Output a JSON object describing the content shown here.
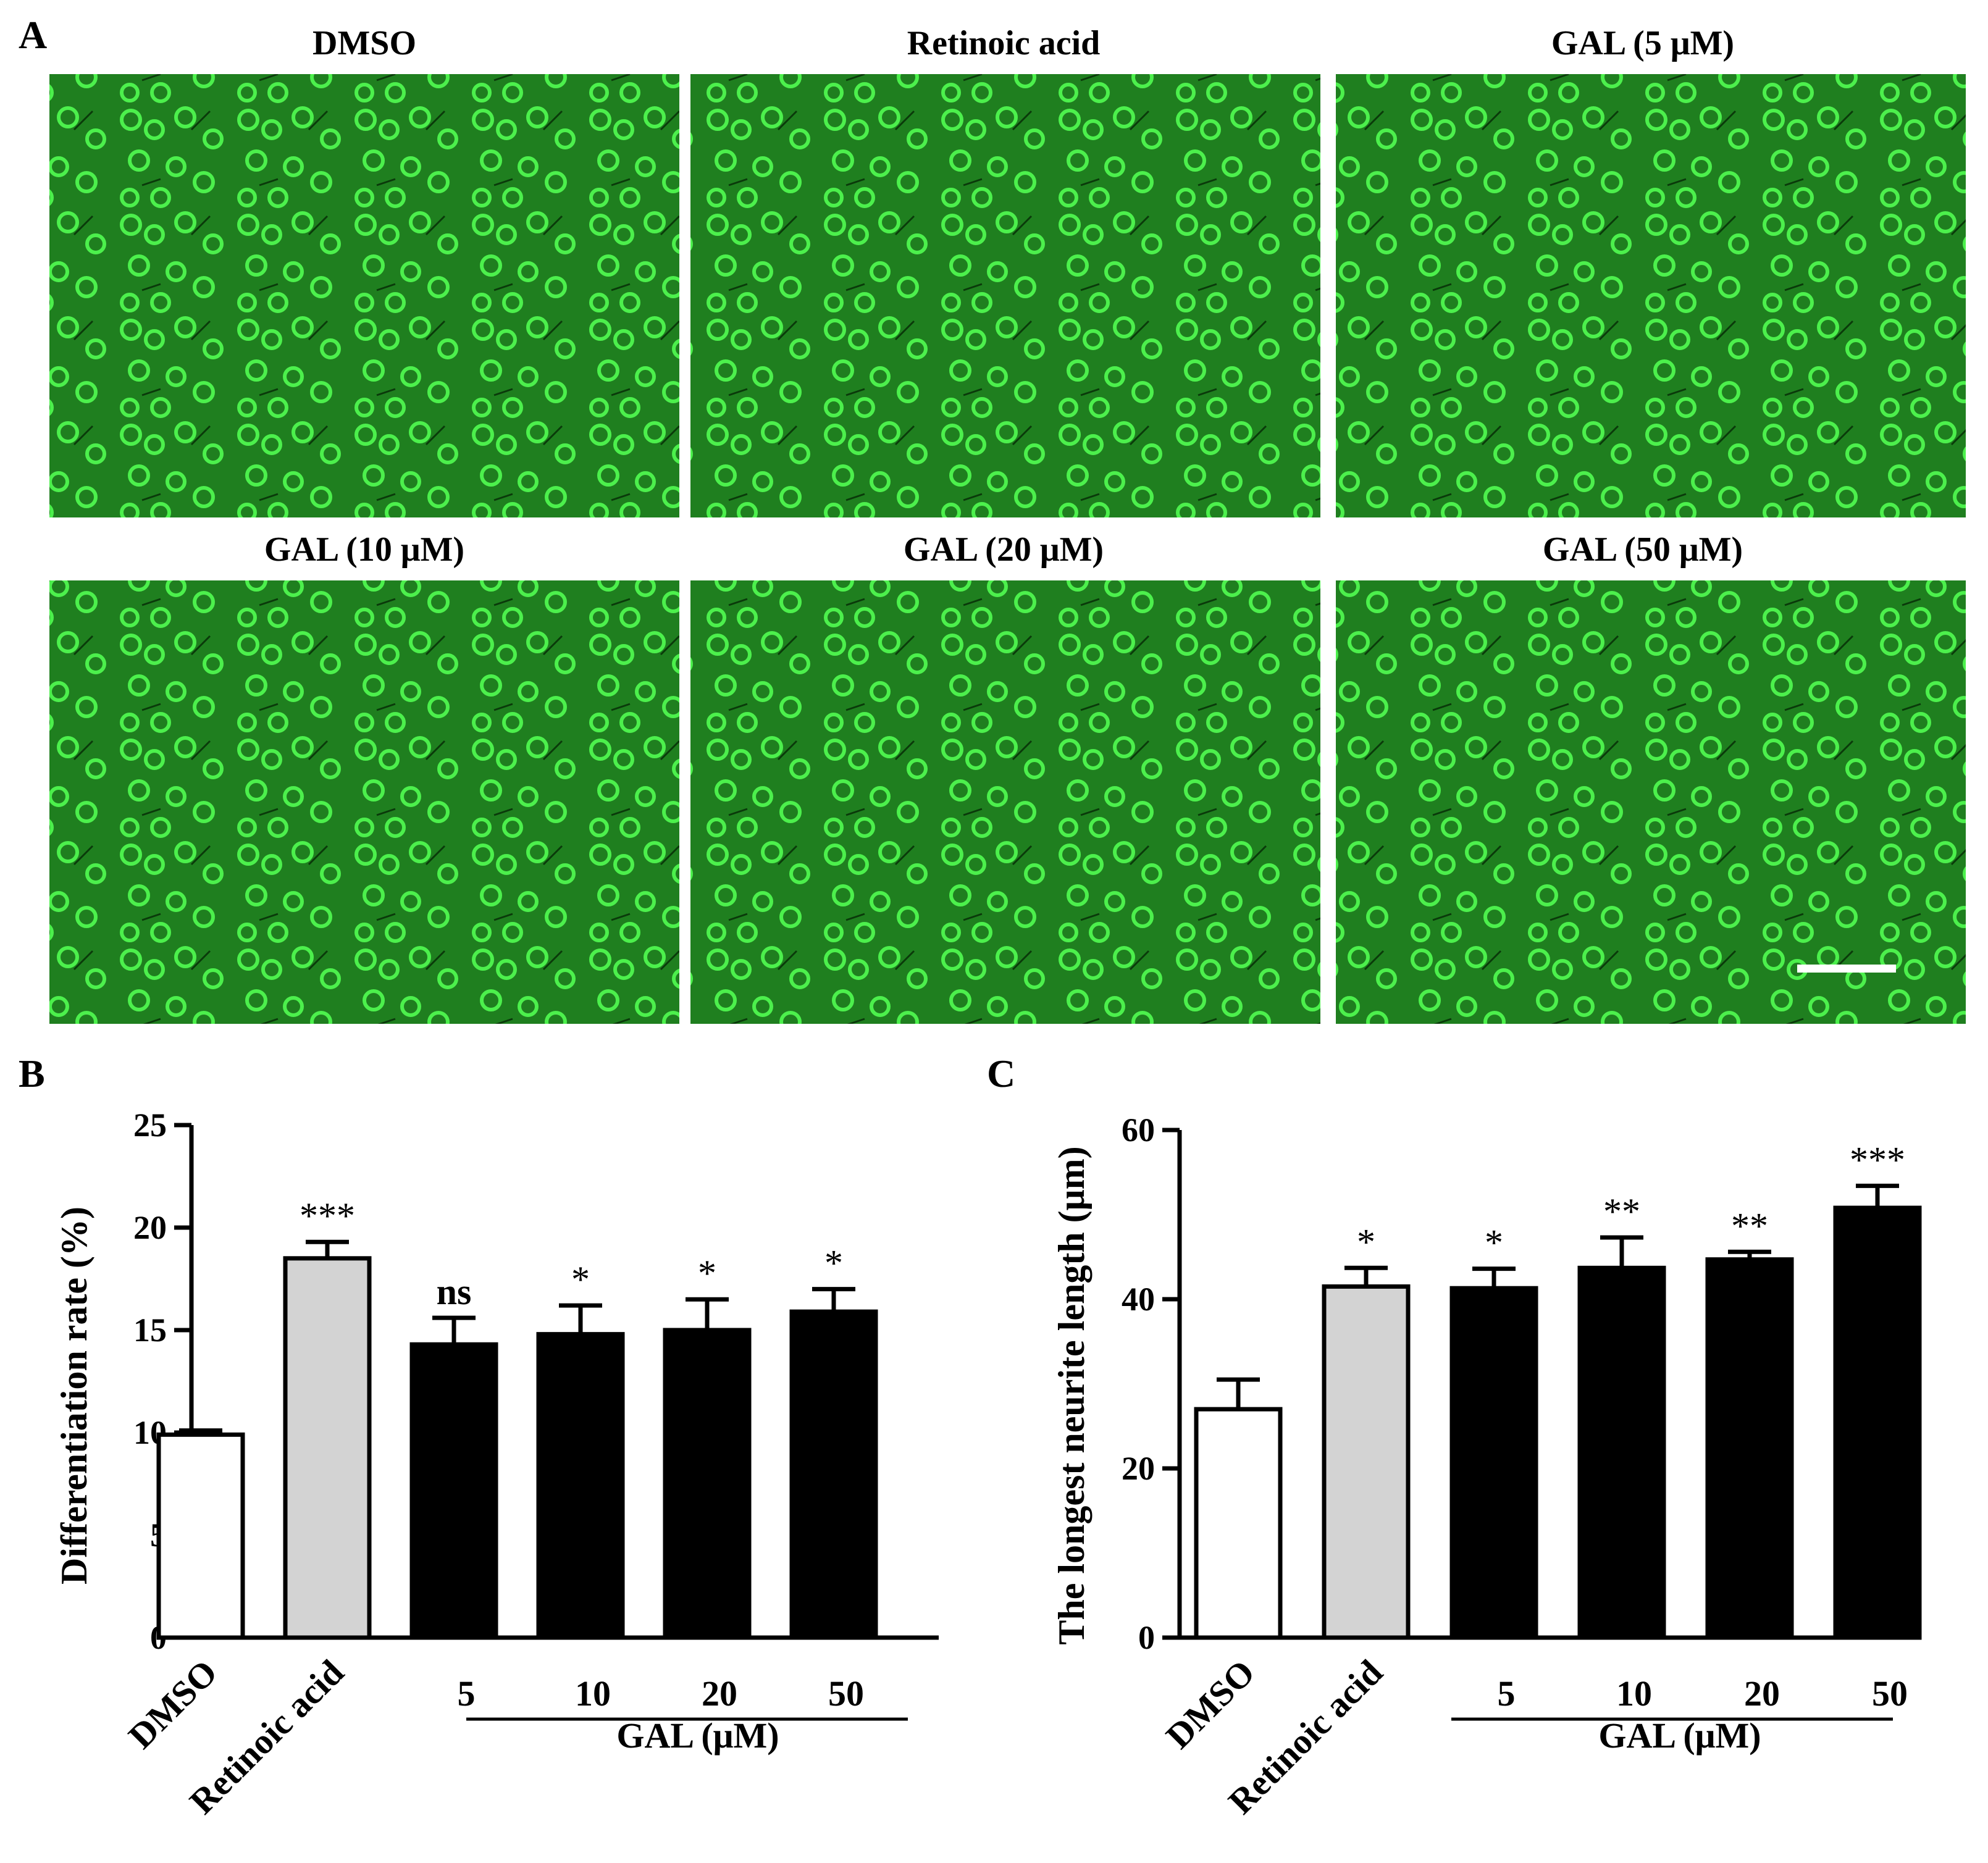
{
  "panel_letters": [
    "A",
    "B",
    "C"
  ],
  "micrographs": {
    "titles": [
      "DMSO",
      "Retinoic acid",
      "GAL (5 μM)",
      "GAL (10 μM)",
      "GAL (20 μM)",
      "GAL (50 μM)"
    ],
    "background_color": "#1f7f1f",
    "cell_color": "#4cf04c"
  },
  "chart_data": [
    {
      "type": "bar",
      "panel": "B",
      "ylabel": "Differentiation rate (%)",
      "ylim": [
        0,
        25
      ],
      "yticks": [
        0,
        5,
        10,
        15,
        20,
        25
      ],
      "categories": [
        "DMSO",
        "Retinoic acid",
        "5",
        "10",
        "20",
        "50"
      ],
      "values": [
        9.9,
        18.5,
        14.3,
        14.8,
        15.0,
        15.9
      ],
      "errors": [
        0.2,
        0.8,
        1.3,
        1.4,
        1.5,
        1.1
      ],
      "significance": [
        "",
        "***",
        "ns",
        "*",
        "*",
        "*"
      ],
      "bar_colors": [
        "#ffffff",
        "#d3d3d3",
        "#000000",
        "#000000",
        "#000000",
        "#000000"
      ],
      "group_label": "GAL (μM)"
    },
    {
      "type": "bar",
      "panel": "C",
      "ylabel": "The longest neurite length (μm)",
      "ylim": [
        0,
        60
      ],
      "yticks": [
        0,
        20,
        40,
        60
      ],
      "categories": [
        "DMSO",
        "Retinoic acid",
        "5",
        "10",
        "20",
        "50"
      ],
      "values": [
        27.0,
        41.5,
        41.3,
        43.7,
        44.7,
        50.8
      ],
      "errors": [
        3.5,
        2.2,
        2.3,
        3.6,
        0.9,
        2.6
      ],
      "significance": [
        "",
        "*",
        "*",
        "**",
        "**",
        "***"
      ],
      "bar_colors": [
        "#ffffff",
        "#d3d3d3",
        "#000000",
        "#000000",
        "#000000",
        "#000000"
      ],
      "group_label": "GAL (μM)"
    }
  ]
}
